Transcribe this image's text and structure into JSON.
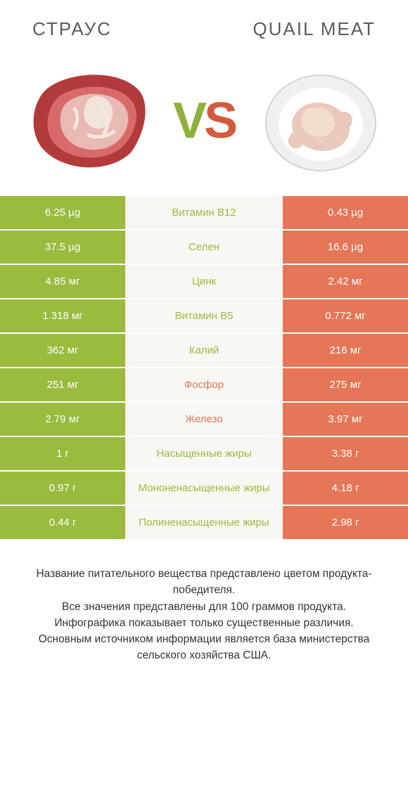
{
  "colors": {
    "green": "#99bb3e",
    "orange": "#e57657",
    "mid_bg": "#f8f7f3",
    "text": "#333333",
    "title": "#5c5c5c"
  },
  "left_title": "Страус",
  "right_title": "Quail meat",
  "vs_v": "V",
  "vs_s": "S",
  "rows": [
    {
      "left": "6.25 µg",
      "name": "Витамин B12",
      "right": "0.43 µg",
      "winner": "left"
    },
    {
      "left": "37.5 µg",
      "name": "Селен",
      "right": "16.6 µg",
      "winner": "left"
    },
    {
      "left": "4.85 мг",
      "name": "Цинк",
      "right": "2.42 мг",
      "winner": "left"
    },
    {
      "left": "1.318 мг",
      "name": "Витамин B5",
      "right": "0.772 мг",
      "winner": "left"
    },
    {
      "left": "362 мг",
      "name": "Калий",
      "right": "216 мг",
      "winner": "left"
    },
    {
      "left": "251 мг",
      "name": "Фосфор",
      "right": "275 мг",
      "winner": "right"
    },
    {
      "left": "2.79 мг",
      "name": "Железо",
      "right": "3.97 мг",
      "winner": "right"
    },
    {
      "left": "1 г",
      "name": "Насыщенные жиры",
      "right": "3.38 г",
      "winner": "left"
    },
    {
      "left": "0.97 г",
      "name": "Мононенасыщенные жиры",
      "right": "4.18 г",
      "winner": "left"
    },
    {
      "left": "0.44 г",
      "name": "Полиненасыщенные жиры",
      "right": "2.98 г",
      "winner": "left"
    }
  ],
  "footer_lines": [
    "Название питательного вещества представлено цветом продукта-победителя.",
    "Все значения представлены для 100 граммов продукта.",
    "Инфографика показывает только существенные различия.",
    "Основным источником информации является база министерства сельского хозяйства США."
  ]
}
